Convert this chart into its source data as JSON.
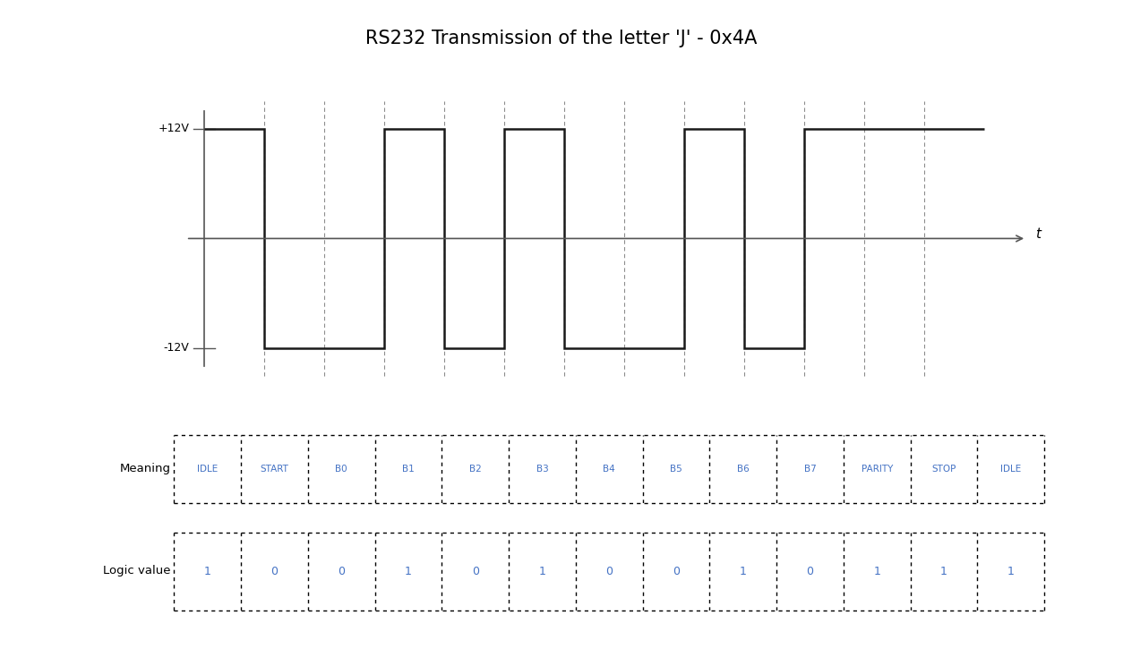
{
  "title": "RS232 Transmission of the letter 'J' - 0x4A",
  "title_fontsize": 15,
  "plus12v_label": "+12V",
  "minus12v_label": "-12V",
  "t_label": "t",
  "meaning_label": "Meaning",
  "logic_label": "Logic value",
  "meanings": [
    "IDLE",
    "START",
    "B0",
    "B1",
    "B2",
    "B3",
    "B4",
    "B5",
    "B6",
    "B7",
    "PARITY",
    "STOP",
    "IDLE"
  ],
  "logic_values": [
    "1",
    "0",
    "0",
    "1",
    "0",
    "1",
    "0",
    "0",
    "1",
    "0",
    "1",
    "1",
    "1"
  ],
  "signal_color": "#1a1a1a",
  "axis_color": "#555555",
  "dashed_color": "#666666",
  "text_color": "#000000",
  "blue_text_color": "#4472c4",
  "background_color": "#ffffff",
  "high_level": 12,
  "low_level": -12,
  "logic_vals": [
    1,
    0,
    0,
    1,
    0,
    1,
    0,
    0,
    1,
    0,
    1,
    1,
    1
  ]
}
